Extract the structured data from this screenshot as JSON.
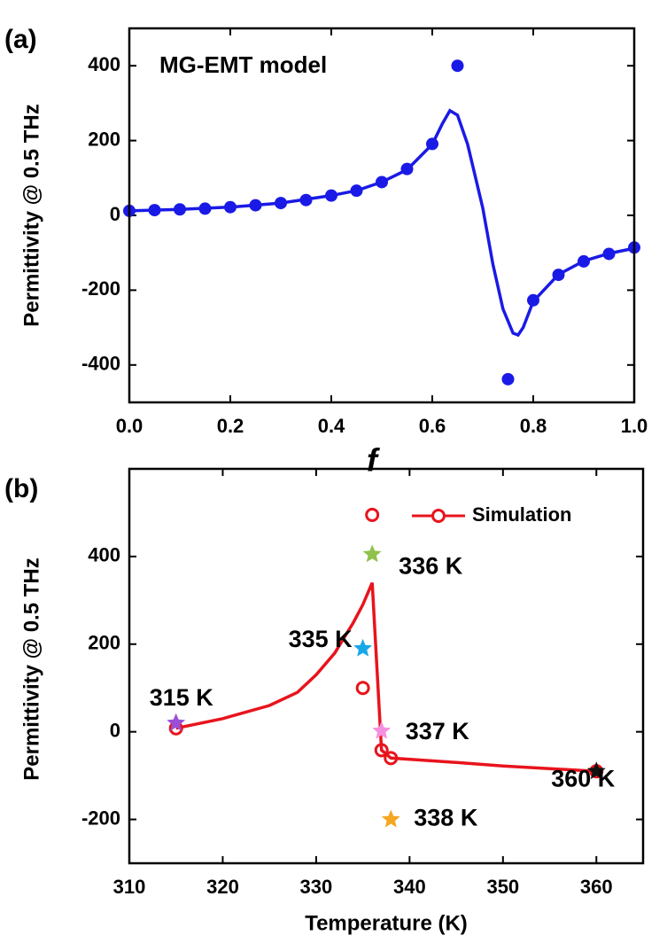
{
  "chart_data": [
    {
      "type": "line",
      "panel_label": "(a)",
      "xlabel": "f",
      "ylabel": "Permittivity @ 0.5 THz",
      "xlim": [
        0,
        1
      ],
      "ylim": [
        -500,
        500
      ],
      "xticks": [
        {
          "value": 0,
          "label": "0.0"
        },
        0.2,
        0.4,
        0.6,
        0.8,
        {
          "value": 1,
          "label": "1.0"
        }
      ],
      "yticks": [
        -400,
        -200,
        0,
        200,
        400
      ],
      "annotations": [
        {
          "text": "MG-EMT model",
          "color": "#1a1ae6"
        }
      ],
      "series": [
        {
          "color": "#1a1ae6",
          "marker": "filled-circle",
          "line": false,
          "x": [
            0,
            0.05,
            0.1,
            0.15,
            0.2,
            0.25,
            0.3,
            0.35,
            0.4,
            0.45,
            0.5,
            0.55,
            0.6,
            0.65,
            0.75,
            0.8,
            0.85,
            0.9,
            0.95,
            1.0
          ],
          "values": [
            12,
            14,
            16,
            18,
            22,
            27,
            33,
            41,
            53,
            66,
            89,
            124,
            191,
            400,
            -438,
            -227,
            -159,
            -123,
            -103,
            -86
          ]
        },
        {
          "color": "#1a1ae6",
          "marker": null,
          "line": true,
          "x": [
            0,
            0.1,
            0.2,
            0.3,
            0.4,
            0.45,
            0.5,
            0.55,
            0.6,
            0.62,
            0.635,
            0.65,
            0.67,
            0.7,
            0.72,
            0.74,
            0.76,
            0.77,
            0.78,
            0.8,
            0.85,
            0.9,
            0.95,
            1.0
          ],
          "values": [
            12,
            16,
            22,
            33,
            53,
            66,
            89,
            122,
            190,
            245,
            280,
            268,
            190,
            20,
            -130,
            -250,
            -315,
            -320,
            -300,
            -230,
            -158,
            -122,
            -102,
            -88
          ]
        }
      ]
    },
    {
      "type": "line",
      "panel_label": "(b)",
      "xlabel": "Temperature (K)",
      "ylabel": "Permittivity @ 0.5 THz",
      "xlim": [
        310,
        365
      ],
      "ylim": [
        -300,
        600
      ],
      "xticks": [
        310,
        320,
        330,
        340,
        350,
        360
      ],
      "yticks": [
        -200,
        0,
        200,
        400
      ],
      "legend": "upper right",
      "series": [
        {
          "name": "Simulation",
          "color": "#e8141c",
          "marker": "open-circle",
          "line": false,
          "x": [
            315,
            335,
            336,
            337,
            338,
            360
          ],
          "values": [
            8,
            100,
            495,
            -42,
            -60,
            -90
          ]
        },
        {
          "color": "#e8141c",
          "marker": null,
          "line": true,
          "x": [
            315,
            320,
            325,
            328,
            330,
            332,
            334,
            335,
            336,
            337,
            338,
            345,
            350,
            355,
            360
          ],
          "values": [
            8,
            30,
            60,
            90,
            130,
            180,
            250,
            290,
            340,
            -42,
            -60,
            -70,
            -78,
            -84,
            -90
          ]
        }
      ],
      "stars": [
        {
          "label": "315 K",
          "x": 315,
          "value": 20,
          "color": "#9b4fd6"
        },
        {
          "label": "335 K",
          "x": 335,
          "value": 190,
          "color": "#1aa7e8"
        },
        {
          "label": "336 K",
          "x": 336,
          "value": 405,
          "color": "#8fc24c"
        },
        {
          "label": "337 K",
          "x": 337,
          "value": 2,
          "color": "#f590e0"
        },
        {
          "label": "338 K",
          "x": 338,
          "value": -200,
          "color": "#f5a623"
        },
        {
          "label": "360 K",
          "x": 360,
          "value": -90,
          "color": "#111111"
        }
      ]
    }
  ]
}
